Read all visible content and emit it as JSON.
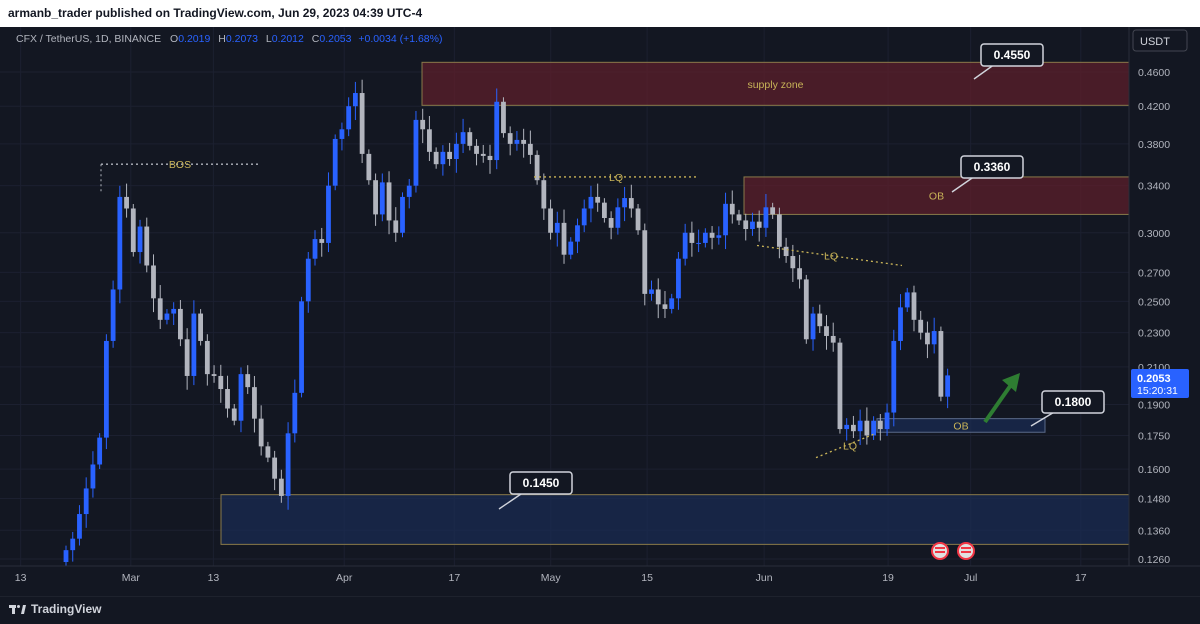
{
  "publisher_line": "armanb_trader published on TradingView.com, Jun 29, 2023 04:39 UTC-4",
  "brand": "TradingView",
  "currency_button": "USDT",
  "legend": {
    "symbol": "CFX / TetherUS, 1D, BINANCE",
    "o_label": "O",
    "o": "0.2019",
    "h_label": "H",
    "h": "0.2073",
    "l_label": "L",
    "l": "0.2012",
    "c_label": "C",
    "c": "0.2053",
    "change": "+0.0034 (+1.68%)"
  },
  "last_price": {
    "value": "0.2053",
    "countdown": "15:20:31",
    "color": "#2962ff"
  },
  "colors": {
    "bg": "#131722",
    "up": "#2962ff",
    "down": "#b2b5be",
    "annotation": "#c9b458",
    "supply": "#5c1f2b",
    "demand": "#1a2b52"
  },
  "chart_data": {
    "type": "candlestick",
    "scale": "log",
    "ylim": [
      0.125,
      0.48
    ],
    "y_ticks": [
      "0.4600",
      "0.4200",
      "0.3800",
      "0.3400",
      "0.3000",
      "0.2700",
      "0.2500",
      "0.2300",
      "0.2100",
      "0.1900",
      "0.1750",
      "0.1600",
      "0.1480",
      "0.1360",
      "0.1260"
    ],
    "x_ticks": [
      "13",
      "Mar",
      "13",
      "Apr",
      "17",
      "May",
      "15",
      "Jun",
      "19",
      "Jul",
      "17"
    ],
    "x_range": [
      "2023-02-10",
      "2023-07-24"
    ],
    "candles_close": [
      0.129,
      0.133,
      0.142,
      0.152,
      0.162,
      0.174,
      0.225,
      0.258,
      0.33,
      0.32,
      0.285,
      0.305,
      0.275,
      0.252,
      0.238,
      0.242,
      0.245,
      0.226,
      0.205,
      0.242,
      0.225,
      0.206,
      0.205,
      0.198,
      0.188,
      0.182,
      0.206,
      0.199,
      0.183,
      0.17,
      0.165,
      0.156,
      0.149,
      0.176,
      0.196,
      0.25,
      0.28,
      0.295,
      0.292,
      0.34,
      0.385,
      0.395,
      0.42,
      0.435,
      0.37,
      0.345,
      0.315,
      0.343,
      0.31,
      0.3,
      0.33,
      0.34,
      0.405,
      0.395,
      0.372,
      0.36,
      0.372,
      0.365,
      0.38,
      0.392,
      0.378,
      0.37,
      0.368,
      0.364,
      0.425,
      0.391,
      0.38,
      0.384,
      0.38,
      0.369,
      0.345,
      0.32,
      0.3,
      0.308,
      0.283,
      0.293,
      0.306,
      0.32,
      0.33,
      0.325,
      0.312,
      0.304,
      0.321,
      0.329,
      0.32,
      0.302,
      0.255,
      0.258,
      0.248,
      0.245,
      0.252,
      0.28,
      0.3,
      0.292,
      0.292,
      0.3,
      0.296,
      0.298,
      0.324,
      0.315,
      0.31,
      0.303,
      0.309,
      0.304,
      0.321,
      0.315,
      0.289,
      0.282,
      0.273,
      0.265,
      0.226,
      0.242,
      0.234,
      0.228,
      0.224,
      0.178,
      0.18,
      0.177,
      0.182,
      0.175,
      0.182,
      0.178,
      0.186,
      0.225,
      0.246,
      0.256,
      0.238,
      0.23,
      0.223,
      0.231,
      0.194,
      0.2053
    ],
    "annotations": [
      {
        "kind": "zone",
        "label": "supply zone",
        "price_top": 0.472,
        "price_bottom": 0.421,
        "color": "#5c1f2b"
      },
      {
        "kind": "zone",
        "label": "OB",
        "price_top": 0.348,
        "price_bottom": 0.315,
        "color": "#5c1f2b"
      },
      {
        "kind": "zone",
        "label": "OB",
        "price_top": 0.183,
        "price_bottom": 0.1765,
        "color": "#1a2b52"
      },
      {
        "kind": "zone",
        "label": "",
        "price_top": 0.1495,
        "price_bottom": 0.131,
        "color": "#1a2b52"
      },
      {
        "kind": "level",
        "label": "BOS",
        "price": 0.36
      },
      {
        "kind": "level",
        "label": "LQ",
        "price": 0.348
      },
      {
        "kind": "level",
        "label": "LQ",
        "price": 0.275
      },
      {
        "kind": "level",
        "label": "LQ",
        "price": 0.17
      },
      {
        "kind": "callout",
        "label": "0.4550",
        "price": 0.455
      },
      {
        "kind": "callout",
        "label": "0.3360",
        "price": 0.336
      },
      {
        "kind": "callout",
        "label": "0.1800",
        "price": 0.18
      },
      {
        "kind": "callout",
        "label": "0.1450",
        "price": 0.145
      }
    ]
  }
}
